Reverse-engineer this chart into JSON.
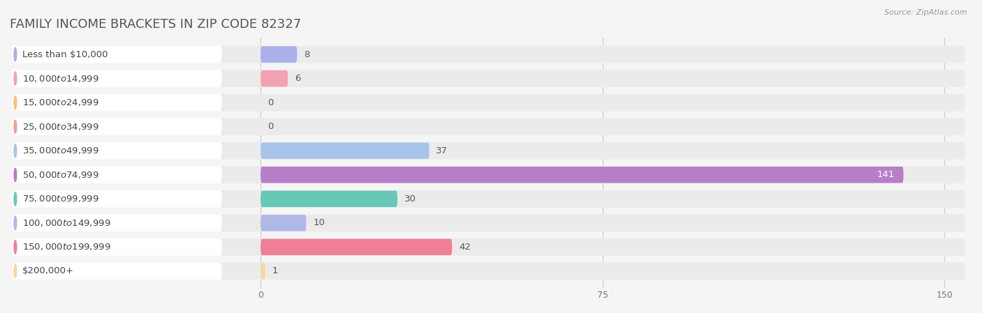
{
  "title": "FAMILY INCOME BRACKETS IN ZIP CODE 82327",
  "source": "Source: ZipAtlas.com",
  "categories": [
    "Less than $10,000",
    "$10,000 to $14,999",
    "$15,000 to $24,999",
    "$25,000 to $34,999",
    "$35,000 to $49,999",
    "$50,000 to $74,999",
    "$75,000 to $99,999",
    "$100,000 to $149,999",
    "$150,000 to $199,999",
    "$200,000+"
  ],
  "values": [
    8,
    6,
    0,
    0,
    37,
    141,
    30,
    10,
    42,
    1
  ],
  "bar_colors": [
    "#aab0e8",
    "#f4a0b5",
    "#f9c07a",
    "#f0a090",
    "#a8c4e8",
    "#b87ec8",
    "#68c8b8",
    "#b0b8e8",
    "#f08098",
    "#f9d898"
  ],
  "xlim_max": 150,
  "xticks": [
    0,
    75,
    150
  ],
  "bg_color": "#f5f5f5",
  "row_bg_color": "#ebebeb",
  "pill_color": "#ffffff",
  "title_fontsize": 13,
  "label_fontsize": 9.5,
  "value_fontsize": 9.5,
  "source_fontsize": 8
}
